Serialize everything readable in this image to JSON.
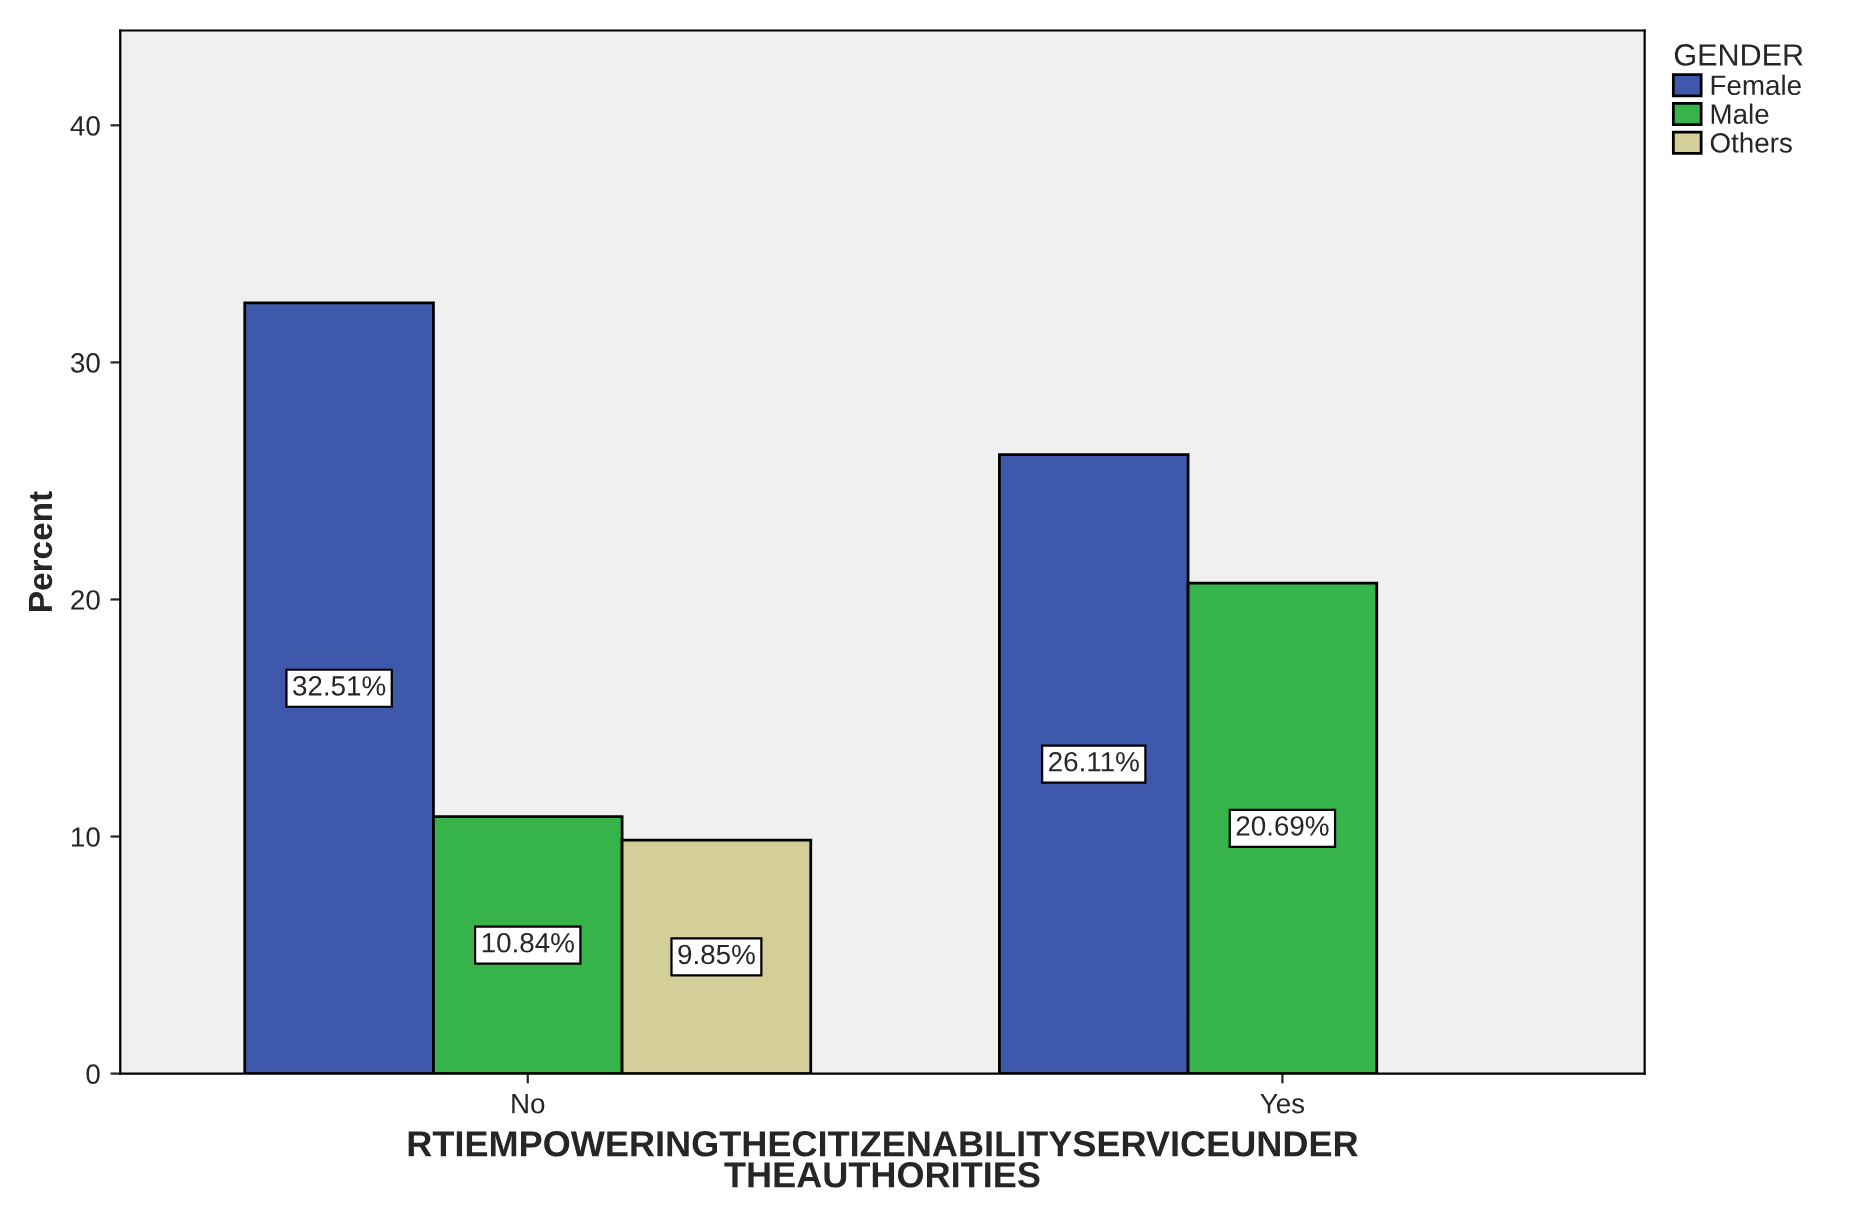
{
  "chart_data": {
    "type": "bar",
    "xlabel": "RTIEMPOWERINGTHECITIZENABILITYSERVICEUNDER\nTHEAUTHORITIES",
    "ylabel": "Percent",
    "legend_title": "GENDER",
    "categories": [
      "No",
      "Yes"
    ],
    "series": [
      {
        "name": "Female",
        "color": "#3e58ac",
        "values": [
          32.51,
          26.11
        ],
        "value_labels": [
          "32.51%",
          "26.11%"
        ]
      },
      {
        "name": "Male",
        "color": "#36b44a",
        "values": [
          10.84,
          20.69
        ],
        "value_labels": [
          "10.84%",
          "20.69%"
        ]
      },
      {
        "name": "Others",
        "color": "#d4cf98",
        "values": [
          9.85,
          null
        ],
        "value_labels": [
          "9.85%",
          null
        ]
      }
    ],
    "ylim": [
      0,
      44
    ],
    "yticks": [
      0,
      10,
      20,
      30,
      40
    ],
    "grid": false,
    "legend": "top right"
  }
}
